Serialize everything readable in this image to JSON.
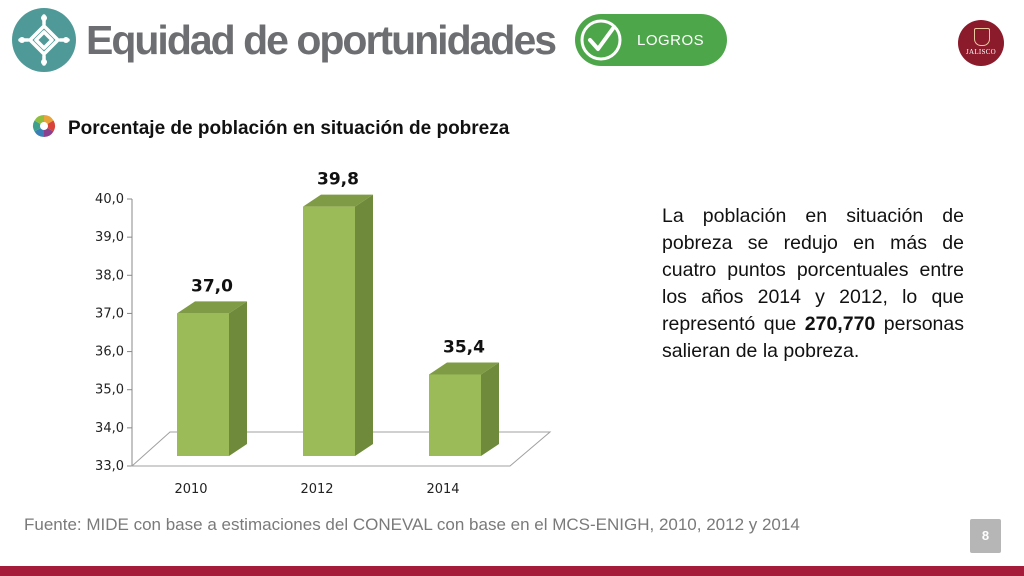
{
  "header": {
    "title": "Equidad de oportunidades",
    "badge_label": "LOGROS",
    "logo_text": "JALISCO"
  },
  "chart_title": "Porcentaje de población en situación de pobreza",
  "chart_data": {
    "type": "bar",
    "title": "Porcentaje de población en situación de pobreza",
    "categories": [
      "2010",
      "2012",
      "2014"
    ],
    "values": [
      37.0,
      39.8,
      35.4
    ],
    "data_labels": [
      "37,0",
      "39,8",
      "35,4"
    ],
    "ylim": [
      33.0,
      40.0
    ],
    "yticks": [
      "33,0",
      "34,0",
      "35,0",
      "36,0",
      "37,0",
      "38,0",
      "39,0",
      "40,0"
    ],
    "xlabel": "",
    "ylabel": "",
    "grid": false,
    "bar_color": "#9bbb59",
    "bar_side_color": "#6e8a3a",
    "bar_top_color": "#7f9b45"
  },
  "body": {
    "part1": "La población en situación de pobreza se redujo en más de cuatro puntos porcentuales entre los años 2014 y 2012, lo que representó que ",
    "bold": "270,770",
    "part2": " personas salieran de la pobreza."
  },
  "footer": {
    "source": "Fuente: MIDE con base a  estimaciones del CONEVAL con base en el MCS-ENIGH, 2010, 2012 y 2014",
    "page_number": "8"
  },
  "colors": {
    "accent_teal": "#4f9a98",
    "badge_green": "#4ea64a",
    "brand_red": "#a51c3a",
    "logo_maroon": "#8b1a2b"
  }
}
